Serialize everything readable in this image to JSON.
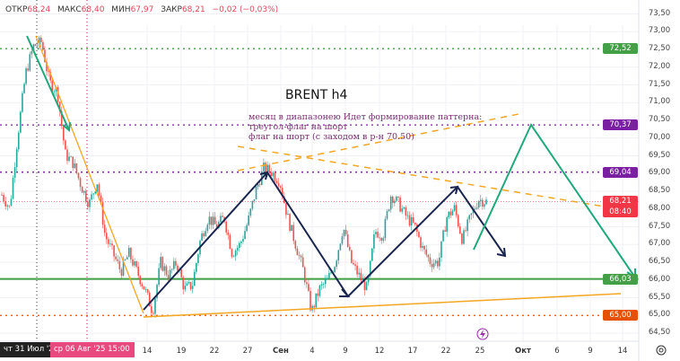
{
  "header": {
    "open_label": "ОТКР",
    "open": "68,24",
    "high_label": "МАКС",
    "high": "68,40",
    "low_label": "МИН",
    "low": "67,97",
    "close_label": "ЗАКР",
    "close": "68,21",
    "change": "−0,02 (−0,03%)"
  },
  "title": "BRENT h4",
  "note": [
    "месяц в диапазонею Идет формирование паттерна:",
    "треугол-флаг на шорт",
    "флаг на шорт (с заходом в р-н 70.50)"
  ],
  "crosshair_dates": {
    "first": "чт 31 Июл '25",
    "second": "ср 06 Авг '25   15:00"
  },
  "levels": [
    {
      "value": "72,52",
      "color": "#43a047",
      "style": "dotted"
    },
    {
      "value": "70,37",
      "color": "#7b1fa2",
      "style": "dotted"
    },
    {
      "value": "69,04",
      "color": "#7b1fa2",
      "style": "dotted"
    },
    {
      "value": "68,21",
      "color": "#f23645",
      "style": "dotted",
      "countdown": "08:40"
    },
    {
      "value": "66,03",
      "color": "#43a047",
      "style": "solid"
    },
    {
      "value": "65,00",
      "color": "#e65100",
      "style": "dotted"
    }
  ],
  "colors": {
    "up": "#26a69a",
    "down": "#ef5350"
  },
  "chart_data": {
    "type": "candlestick",
    "title": "BRENT h4",
    "y_ticks": [
      "73,50",
      "73,00",
      "72,50",
      "72,00",
      "71,50",
      "71,00",
      "70,50",
      "70,00",
      "69,50",
      "69,00",
      "68,50",
      "68,00",
      "67,50",
      "67,00",
      "66,50",
      "66,00",
      "65,50",
      "65,00",
      "64,50"
    ],
    "ylim": [
      64.3,
      73.7
    ],
    "x_ticks": [
      "14",
      "19",
      "22",
      "27",
      "Сен",
      "4",
      "9",
      "12",
      "17",
      "22",
      "25",
      "Окт",
      "6",
      "9",
      "14"
    ],
    "close_path": [
      68.4,
      68.02,
      70.05,
      71.82,
      72.59,
      72.71,
      71.57,
      71.31,
      69.54,
      69.29,
      68.65,
      68.14,
      68.78,
      67.26,
      66.75,
      66.24,
      66.75,
      66.24,
      65.74,
      65.1,
      66.5,
      66.11,
      66.5,
      65.74,
      65.86,
      67.13,
      67.76,
      67.51,
      67.76,
      66.75,
      67.0,
      67.64,
      68.53,
      69.16,
      69.03,
      68.78,
      67.76,
      67.0,
      66.24,
      65.1,
      65.74,
      65.99,
      66.5,
      67.51,
      66.5,
      66.11,
      65.74,
      67.38,
      67.26,
      68.4,
      68.14,
      67.76,
      67.51,
      66.88,
      66.5,
      66.5,
      67.76,
      68.02,
      67.13,
      67.76,
      68.27,
      68.21
    ]
  }
}
